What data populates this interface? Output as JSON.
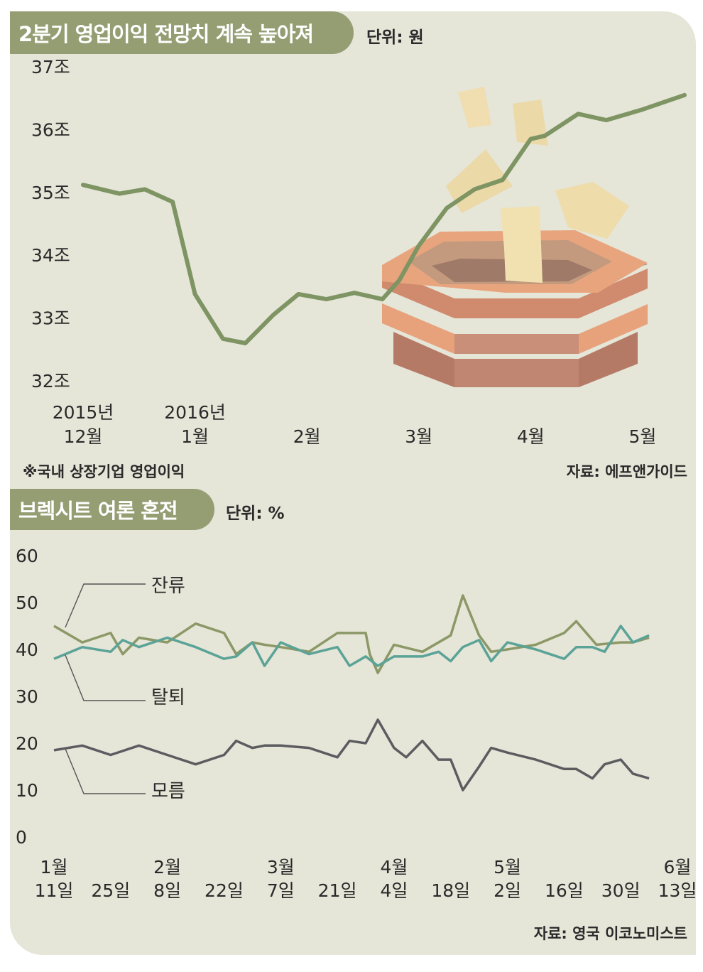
{
  "top": {
    "title": "2분기 영업이익 전망치 계속 높아져",
    "unit": "단위: 원",
    "footnote": "※국내 상장기업 영업이익",
    "source": "자료: 에프앤가이드"
  },
  "bottom": {
    "title": "브렉시트 여론 혼전",
    "unit": "단위: %",
    "source": "자료: 영국 이코노미스트"
  },
  "colors": {
    "panel": "#e5e5d8",
    "header": "#959d73",
    "top_line": "#7e9462",
    "remain": "#8c9866",
    "leave": "#5ba397",
    "undecided": "#5c5c60"
  },
  "chart_data": [
    {
      "type": "line",
      "title": "2분기 영업이익 전망치 계속 높아져",
      "unit": "단위: 원",
      "y_ticks": [
        "32조",
        "33조",
        "34조",
        "35조",
        "36조",
        "37조"
      ],
      "ylim": [
        32,
        37
      ],
      "x_ticks": [
        {
          "line1": "2015년",
          "line2": "12월",
          "x": 0
        },
        {
          "line1": "2016년",
          "line2": "1월",
          "x": 4
        },
        {
          "line1": "",
          "line2": "2월",
          "x": 8
        },
        {
          "line1": "",
          "line2": "3월",
          "x": 12
        },
        {
          "line1": "",
          "line2": "4월",
          "x": 16
        },
        {
          "line1": "",
          "line2": "5월",
          "x": 20
        }
      ],
      "xlim": [
        0,
        21.5
      ],
      "series": [
        {
          "x": [
            0,
            1.3,
            2.2,
            3.2,
            4,
            5,
            5.8,
            6.8,
            7.7,
            8.7,
            9.7,
            10.7,
            11.3,
            12,
            13,
            14,
            15,
            16,
            16.5,
            17.7,
            18.7,
            20,
            21.5
          ],
          "values": [
            35.12,
            34.98,
            35.05,
            34.85,
            33.38,
            32.67,
            32.6,
            33.05,
            33.38,
            33.3,
            33.4,
            33.3,
            33.6,
            34.15,
            34.75,
            35.05,
            35.2,
            35.85,
            35.9,
            36.25,
            36.15,
            36.32,
            36.55
          ]
        }
      ]
    },
    {
      "type": "line",
      "title": "브렉시트 여론 혼전",
      "unit": "단위: %",
      "y_ticks": [
        "0",
        "10",
        "20",
        "30",
        "40",
        "50",
        "60"
      ],
      "ylim": [
        0,
        60
      ],
      "x_ticks": [
        {
          "line1": "1월",
          "line2": "11일",
          "x": 0
        },
        {
          "line1": "",
          "line2": "25일",
          "x": 14
        },
        {
          "line1": "2월",
          "line2": "8일",
          "x": 28
        },
        {
          "line1": "",
          "line2": "22일",
          "x": 42
        },
        {
          "line1": "3월",
          "line2": "7일",
          "x": 56
        },
        {
          "line1": "",
          "line2": "21일",
          "x": 70
        },
        {
          "line1": "4월",
          "line2": "4일",
          "x": 84
        },
        {
          "line1": "",
          "line2": "18일",
          "x": 98
        },
        {
          "line1": "5월",
          "line2": "2일",
          "x": 112
        },
        {
          "line1": "",
          "line2": "16일",
          "x": 126
        },
        {
          "line1": "",
          "line2": "30일",
          "x": 140
        },
        {
          "line1": "6월",
          "line2": "13일",
          "x": 154
        }
      ],
      "xlim": [
        0,
        154
      ],
      "series": [
        {
          "name": "잔류",
          "x": [
            0,
            7,
            14,
            17,
            21,
            28,
            35,
            42,
            45,
            49,
            52,
            56,
            63,
            70,
            77,
            78,
            80,
            84,
            91,
            98,
            101,
            105,
            108,
            112,
            119,
            126,
            129,
            134,
            140,
            143,
            147
          ],
          "values": [
            45,
            41.5,
            43.5,
            39,
            42.5,
            41.5,
            45.5,
            43.5,
            39,
            41.5,
            41,
            40.5,
            39.5,
            43.5,
            43.5,
            39,
            35,
            41,
            39.5,
            43,
            51.5,
            43,
            39.5,
            40,
            41,
            43.5,
            46,
            41,
            41.5,
            41.5,
            42.5
          ]
        },
        {
          "name": "탈퇴",
          "x": [
            0,
            7,
            14,
            17,
            21,
            28,
            35,
            42,
            45,
            49,
            52,
            56,
            63,
            70,
            73,
            77,
            80,
            84,
            91,
            95,
            98,
            101,
            105,
            108,
            112,
            119,
            126,
            129,
            133,
            136,
            140,
            143,
            147
          ],
          "values": [
            38,
            40.5,
            39.5,
            42,
            40.5,
            42.5,
            40.5,
            38,
            38.5,
            41.5,
            36.5,
            41.5,
            39,
            40.5,
            36.5,
            38.5,
            36.5,
            38.5,
            38.5,
            39.5,
            37.5,
            40.5,
            42,
            37.5,
            41.5,
            40,
            38,
            40.5,
            40.5,
            39.5,
            45,
            41.5,
            43
          ]
        },
        {
          "name": "모름",
          "x": [
            0,
            7,
            14,
            21,
            28,
            35,
            42,
            45,
            49,
            52,
            56,
            63,
            70,
            73,
            77,
            80,
            84,
            87,
            91,
            95,
            98,
            101,
            105,
            108,
            112,
            119,
            126,
            129,
            133,
            136,
            140,
            143,
            147
          ],
          "values": [
            18.5,
            19.5,
            17.5,
            19.5,
            17.5,
            15.5,
            17.5,
            20.5,
            19,
            19.5,
            19.5,
            19,
            17,
            20.5,
            20,
            25,
            19,
            17,
            20.5,
            16.5,
            16.5,
            10,
            15,
            19,
            18,
            16.5,
            14.5,
            14.5,
            12.5,
            15.5,
            16.5,
            13.5,
            12.5
          ]
        }
      ]
    }
  ]
}
